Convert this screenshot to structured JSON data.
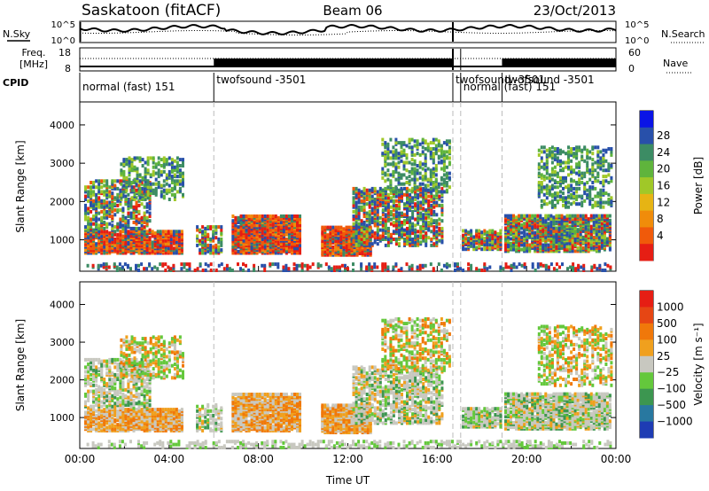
{
  "chart_data": {
    "type": "heatmap",
    "header": {
      "site": "Saskatoon (fitACF)",
      "beam": "Beam 06",
      "date": "23/Oct/2013"
    },
    "noise_panel": {
      "left_label": "N.Sky",
      "right_label": "N.Search",
      "left_ticks": [
        "10^5",
        "10^0"
      ],
      "right_ticks": [
        "10^5",
        "10^0"
      ]
    },
    "freq_panel": {
      "left_label_line1": "Freq.",
      "left_label_line2": "[MHz]",
      "right_label": "Nave",
      "left_ticks": [
        "18",
        "8"
      ],
      "right_ticks": [
        "60",
        "0"
      ]
    },
    "cpid": {
      "label": "CPID",
      "segments": [
        {
          "start_h": 0.0,
          "end_h": 6.0,
          "text": "normal (fast) 151"
        },
        {
          "start_h": 6.0,
          "end_h": 16.7,
          "text": "twofsound -3501"
        },
        {
          "start_h": 16.7,
          "end_h": 17.05,
          "text": "twofsound -3501"
        },
        {
          "start_h": 17.05,
          "end_h": 18.9,
          "text": "normal (fast) 151"
        },
        {
          "start_h": 18.9,
          "end_h": 24.0,
          "text": "twofsound -3501"
        }
      ]
    },
    "x_axis": {
      "label": "Time UT",
      "range_hours": [
        0,
        24
      ],
      "ticks": [
        "00:00",
        "04:00",
        "08:00",
        "12:00",
        "16:00",
        "20:00",
        "00:00"
      ]
    },
    "y_axis": {
      "label": "Slant Range [km]",
      "range_km": [
        180,
        4600
      ],
      "ticks": [
        1000,
        2000,
        3000,
        4000
      ]
    },
    "power_panel": {
      "colorbar_label": "Power [dB]",
      "colorbar_ticks": [
        "28",
        "24",
        "20",
        "16",
        "12",
        "8",
        "4"
      ],
      "colors": [
        "#0a14e6",
        "#2850aa",
        "#3c8c64",
        "#5fb43c",
        "#a0c828",
        "#e6b414",
        "#f08c0a",
        "#f05a0a",
        "#e61e14"
      ]
    },
    "velocity_panel": {
      "colorbar_label": "Velocity [m s⁻¹]",
      "colorbar_ticks": [
        "1000",
        "500",
        "100",
        "25",
        "−25",
        "−100",
        "−500",
        "−1000"
      ],
      "colors": [
        "#1e3cb4",
        "#2878a0",
        "#3c9650",
        "#64c83c",
        "#c8c8c0",
        "#f0a01e",
        "#f0780a",
        "#e64614",
        "#e61e14"
      ]
    }
  }
}
